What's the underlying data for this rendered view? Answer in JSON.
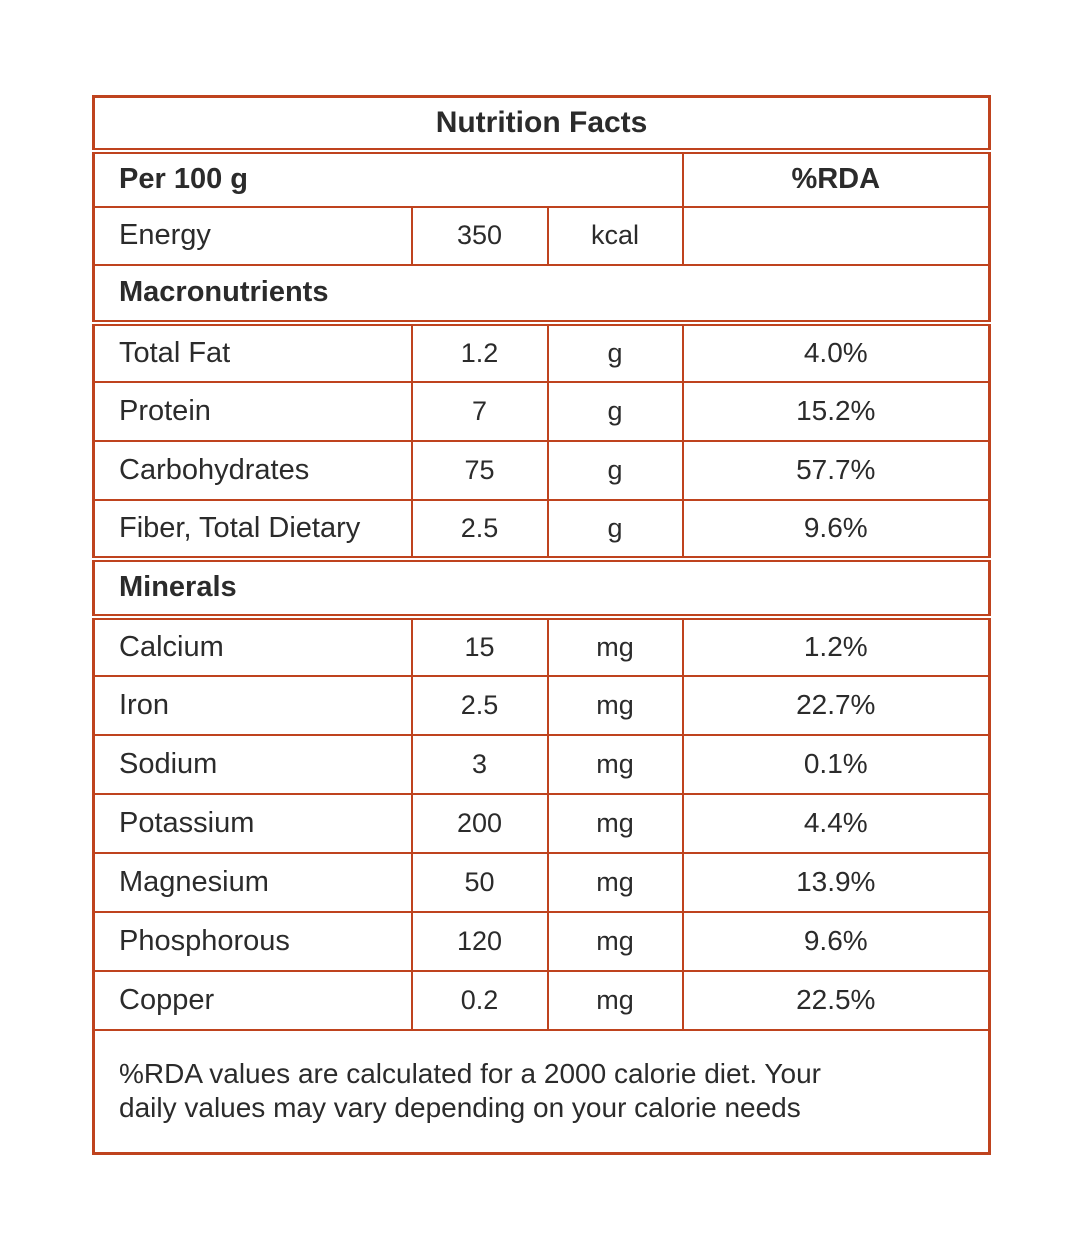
{
  "colors": {
    "border": "#bf431e",
    "text": "#2b2b2b",
    "background": "#ffffff"
  },
  "table": {
    "title": "Nutrition Facts",
    "column_header": {
      "serving": "Per 100 g",
      "rda": "%RDA"
    },
    "energy": {
      "label": "Energy",
      "value": "350",
      "unit": "kcal",
      "rda": ""
    },
    "sections": [
      {
        "name": "Macronutrients",
        "rows": [
          {
            "label": "Total Fat",
            "value": "1.2",
            "unit": "g",
            "rda": "4.0%"
          },
          {
            "label": "Protein",
            "value": "7",
            "unit": "g",
            "rda": "15.2%"
          },
          {
            "label": "Carbohydrates",
            "value": "75",
            "unit": "g",
            "rda": "57.7%"
          },
          {
            "label": "Fiber, Total Dietary",
            "value": "2.5",
            "unit": "g",
            "rda": "9.6%"
          }
        ]
      },
      {
        "name": "Minerals",
        "rows": [
          {
            "label": "Calcium",
            "value": "15",
            "unit": "mg",
            "rda": "1.2%"
          },
          {
            "label": "Iron",
            "value": "2.5",
            "unit": "mg",
            "rda": "22.7%"
          },
          {
            "label": "Sodium",
            "value": "3",
            "unit": "mg",
            "rda": "0.1%"
          },
          {
            "label": "Potassium",
            "value": "200",
            "unit": "mg",
            "rda": "4.4%"
          },
          {
            "label": "Magnesium",
            "value": "50",
            "unit": "mg",
            "rda": "13.9%"
          },
          {
            "label": "Phosphorous",
            "value": "120",
            "unit": "mg",
            "rda": "9.6%"
          },
          {
            "label": "Copper",
            "value": "0.2",
            "unit": "mg",
            "rda": "22.5%"
          }
        ]
      }
    ],
    "footnote": {
      "line1": "%RDA values are calculated for a 2000 calorie diet. Your",
      "line2": "daily values may vary depending on your calorie needs"
    }
  }
}
